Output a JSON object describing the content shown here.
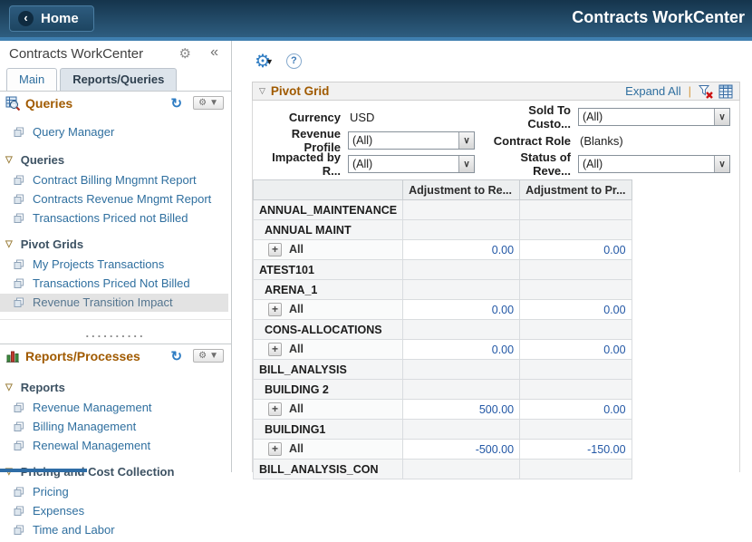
{
  "banner": {
    "home_label": "Home",
    "title": "Contracts WorkCenter"
  },
  "sidebar": {
    "title": "Contracts WorkCenter",
    "tabs": [
      {
        "label": "Main",
        "active": false
      },
      {
        "label": "Reports/Queries",
        "active": true
      }
    ],
    "separator_dots": "..........",
    "sections": [
      {
        "id": "queries",
        "title": "Queries",
        "icon": "query-search-icon",
        "standalone": [
          {
            "label": "Query Manager"
          }
        ],
        "groups": [
          {
            "label": "Queries",
            "items": [
              {
                "label": "Contract Billing Mngmnt Report",
                "selected": false
              },
              {
                "label": "Contracts Revenue Mngmt Report",
                "selected": false
              },
              {
                "label": "Transactions Priced not Billed",
                "selected": false
              }
            ]
          },
          {
            "label": "Pivot Grids",
            "items": [
              {
                "label": "My Projects Transactions",
                "selected": false
              },
              {
                "label": "Transactions Priced Not Billed",
                "selected": false
              },
              {
                "label": "Revenue Transition Impact",
                "selected": true
              }
            ]
          }
        ]
      },
      {
        "id": "reports",
        "title": "Reports/Processes",
        "icon": "bar-chart-icon",
        "standalone": [],
        "groups": [
          {
            "label": "Reports",
            "items": [
              {
                "label": "Revenue Management",
                "selected": false
              },
              {
                "label": "Billing Management",
                "selected": false
              },
              {
                "label": "Renewal Management",
                "selected": false
              }
            ]
          },
          {
            "label": "Pricing and Cost Collection",
            "items": [
              {
                "label": "Pricing",
                "selected": false
              },
              {
                "label": "Expenses",
                "selected": false
              },
              {
                "label": "Time and Labor",
                "selected": false
              }
            ]
          }
        ]
      }
    ]
  },
  "main": {
    "pivot": {
      "title": "Pivot Grid",
      "expand_all_label": "Expand All",
      "filters": [
        {
          "label": "Currency",
          "type": "text",
          "value": "USD",
          "col": "l"
        },
        {
          "label": "Sold To Custo...",
          "type": "select",
          "value": "(All)",
          "col": "r"
        },
        {
          "label": "Revenue Profile",
          "type": "select",
          "value": "(All)",
          "col": "l"
        },
        {
          "label": "Contract Role",
          "type": "text",
          "value": "(Blanks)",
          "col": "r"
        },
        {
          "label": "Impacted by R...",
          "type": "select",
          "value": "(All)",
          "col": "l"
        },
        {
          "label": "Status of Reve...",
          "type": "select",
          "value": "(All)",
          "col": "r"
        }
      ],
      "table": {
        "columns": [
          "Adjustment to Re...",
          "Adjustment to Pr..."
        ],
        "rows": [
          {
            "type": "group1",
            "label": "ANNUAL_MAINTENANCE"
          },
          {
            "type": "group2",
            "label": "ANNUAL MAINT"
          },
          {
            "type": "data",
            "label": "All",
            "values": [
              "0.00",
              "0.00"
            ]
          },
          {
            "type": "group1",
            "label": "ATEST101"
          },
          {
            "type": "group2",
            "label": "ARENA_1"
          },
          {
            "type": "data",
            "label": "All",
            "values": [
              "0.00",
              "0.00"
            ]
          },
          {
            "type": "group2",
            "label": "CONS-ALLOCATIONS"
          },
          {
            "type": "data",
            "label": "All",
            "values": [
              "0.00",
              "0.00"
            ]
          },
          {
            "type": "group1",
            "label": "BILL_ANALYSIS"
          },
          {
            "type": "group2",
            "label": "BUILDING 2"
          },
          {
            "type": "data",
            "label": "All",
            "values": [
              "500.00",
              "0.00"
            ]
          },
          {
            "type": "group2",
            "label": "BUILDING1"
          },
          {
            "type": "data",
            "label": "All",
            "values": [
              "-500.00",
              "-150.00"
            ]
          },
          {
            "type": "group1",
            "label": "BILL_ANALYSIS_CON"
          }
        ]
      }
    }
  },
  "colors": {
    "banner_bg": "#1c3c56",
    "banner_stripe": "#3f7fb0",
    "section_title_orange": "#a05a00",
    "link_blue": "#2f6f9f",
    "value_blue": "#2257a5",
    "selected_item_bg": "#e3e3e3"
  }
}
